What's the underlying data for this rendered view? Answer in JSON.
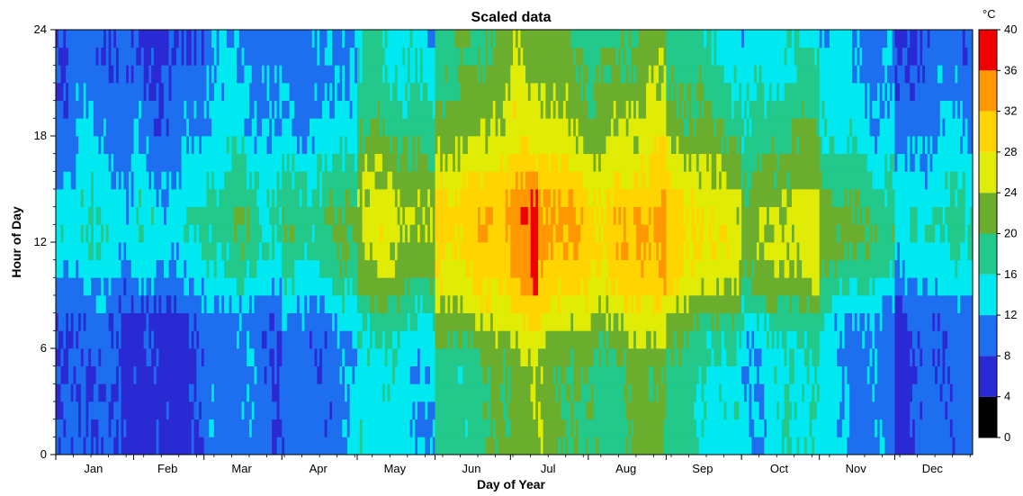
{
  "chart_data": {
    "type": "heatmap",
    "title": "Scaled data",
    "xlabel": "Day of Year",
    "ylabel": "Hour of Day",
    "x_range": [
      1,
      365
    ],
    "x_tick_labels": [
      "Jan",
      "Feb",
      "Mar",
      "Apr",
      "May",
      "Jun",
      "Jul",
      "Aug",
      "Sep",
      "Oct",
      "Nov",
      "Dec"
    ],
    "month_start_days": [
      1,
      32,
      60,
      91,
      121,
      152,
      182,
      213,
      244,
      274,
      305,
      335,
      366
    ],
    "y_range": [
      0,
      24
    ],
    "y_ticks": [
      0,
      6,
      12,
      18,
      24
    ],
    "grid": false,
    "colorbar": {
      "unit": "°C",
      "position": "right",
      "ticks": [
        0,
        4,
        8,
        12,
        16,
        20,
        24,
        28,
        32,
        36,
        40
      ],
      "bins": [
        {
          "min": 0,
          "max": 4,
          "color": "#000000"
        },
        {
          "min": 4,
          "max": 8,
          "color": "#2A2AD4"
        },
        {
          "min": 8,
          "max": 12,
          "color": "#1E6EF0"
        },
        {
          "min": 12,
          "max": 16,
          "color": "#00E8F0"
        },
        {
          "min": 16,
          "max": 20,
          "color": "#22C98A"
        },
        {
          "min": 20,
          "max": 24,
          "color": "#6BAE2E"
        },
        {
          "min": 24,
          "max": 28,
          "color": "#E1EC06"
        },
        {
          "min": 28,
          "max": 32,
          "color": "#FFD400"
        },
        {
          "min": 32,
          "max": 36,
          "color": "#FF9800"
        },
        {
          "min": 36,
          "max": 40,
          "color": "#F00000"
        }
      ]
    },
    "monthly_profiles": [
      {
        "month": "Jan",
        "hour_values_c": [
          7,
          7,
          7,
          7,
          7,
          7,
          7,
          7,
          9,
          10,
          12,
          13,
          14,
          14,
          13,
          12,
          11,
          10,
          10,
          9,
          9,
          8,
          8,
          8
        ]
      },
      {
        "month": "Feb",
        "hour_values_c": [
          8,
          8,
          8,
          8,
          8,
          8,
          8,
          8,
          10,
          12,
          14,
          15,
          16,
          16,
          15,
          14,
          13,
          12,
          11,
          11,
          10,
          10,
          9,
          9
        ]
      },
      {
        "month": "Mar",
        "hour_values_c": [
          9,
          9,
          9,
          9,
          9,
          9,
          9,
          9,
          11,
          13,
          15,
          16,
          17,
          17,
          16,
          15,
          14,
          13,
          12,
          12,
          11,
          11,
          10,
          10
        ]
      },
      {
        "month": "Apr",
        "hour_values_c": [
          11,
          11,
          11,
          11,
          11,
          11,
          11,
          12,
          14,
          16,
          18,
          19,
          20,
          20,
          19,
          18,
          17,
          15,
          14,
          13,
          13,
          12,
          12,
          12
        ]
      },
      {
        "month": "May",
        "hour_values_c": [
          13,
          13,
          13,
          13,
          13,
          14,
          15,
          16,
          18,
          20,
          22,
          23,
          24,
          24,
          23,
          22,
          21,
          19,
          18,
          17,
          16,
          15,
          15,
          14
        ]
      },
      {
        "month": "Jun",
        "hour_values_c": [
          19,
          19,
          19,
          19,
          19,
          20,
          22,
          24,
          26,
          28,
          29,
          30,
          31,
          31,
          30,
          29,
          27,
          25,
          24,
          23,
          22,
          21,
          20,
          20
        ]
      },
      {
        "month": "Jul",
        "hour_values_c": [
          21,
          21,
          21,
          21,
          21,
          22,
          24,
          26,
          28,
          30,
          31,
          32,
          33,
          33,
          32,
          30,
          28,
          26,
          25,
          24,
          23,
          22,
          22,
          21
        ]
      },
      {
        "month": "Aug",
        "hour_values_c": [
          20,
          20,
          20,
          20,
          20,
          21,
          23,
          25,
          27,
          29,
          30,
          31,
          31,
          31,
          30,
          28,
          27,
          25,
          24,
          23,
          22,
          21,
          21,
          20
        ]
      },
      {
        "month": "Sep",
        "hour_values_c": [
          16,
          16,
          16,
          16,
          16,
          17,
          18,
          20,
          23,
          25,
          27,
          28,
          28,
          28,
          27,
          25,
          24,
          22,
          21,
          20,
          19,
          18,
          17,
          17
        ]
      },
      {
        "month": "Oct",
        "hour_values_c": [
          14,
          14,
          14,
          14,
          14,
          14,
          15,
          17,
          19,
          21,
          23,
          24,
          24,
          24,
          23,
          21,
          20,
          19,
          18,
          17,
          16,
          15,
          15,
          14
        ]
      },
      {
        "month": "Nov",
        "hour_values_c": [
          12,
          12,
          12,
          12,
          12,
          12,
          12,
          13,
          15,
          17,
          19,
          20,
          21,
          21,
          20,
          18,
          17,
          16,
          15,
          14,
          14,
          13,
          13,
          12
        ]
      },
      {
        "month": "Dec",
        "hour_values_c": [
          8,
          8,
          8,
          8,
          8,
          8,
          8,
          8,
          9,
          11,
          13,
          14,
          15,
          15,
          14,
          13,
          12,
          11,
          10,
          10,
          9,
          9,
          8,
          8
        ]
      }
    ]
  }
}
